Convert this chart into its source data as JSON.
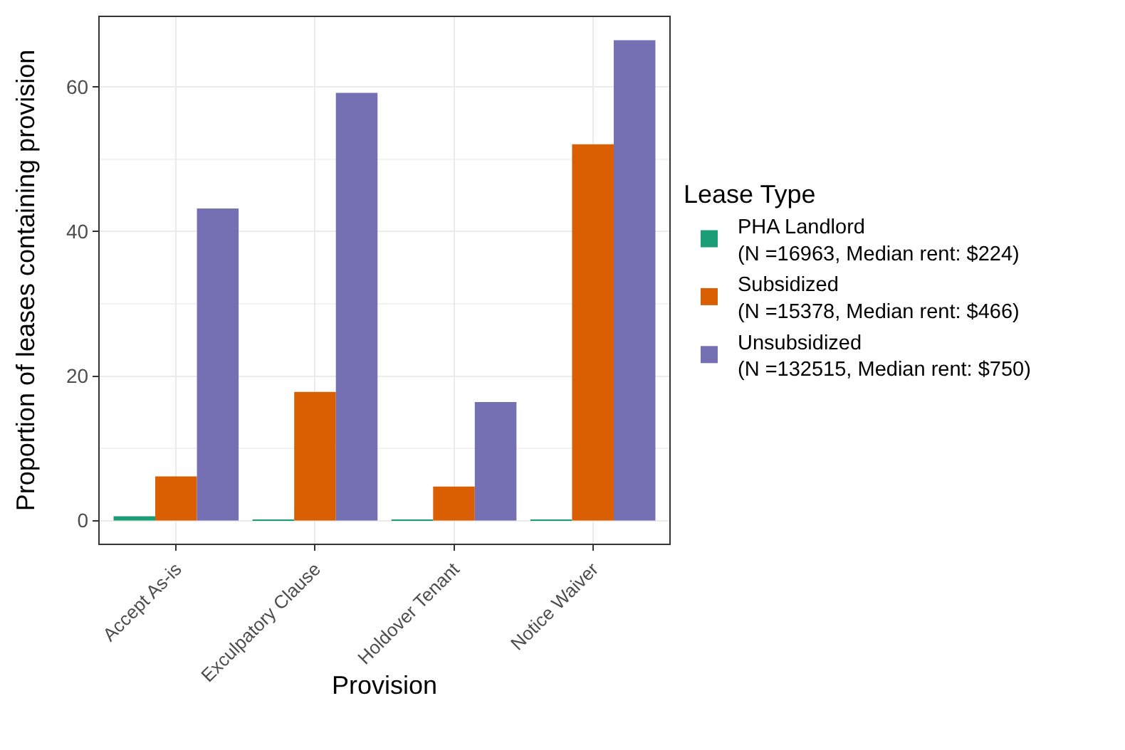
{
  "chart_data": {
    "type": "bar",
    "xlabel": "Provision",
    "ylabel": "Proportion of leases containing provision",
    "legend_title": "Lease Type",
    "categories": [
      "Accept As-is",
      "Exculpatory Clause",
      "Holdover Tenant",
      "Notice Waiver"
    ],
    "series": [
      {
        "name": "PHA Landlord\n(N =16963, Median rent: $224)",
        "color": "#1b9e77",
        "values": [
          0.6,
          0.1,
          0.1,
          0.1
        ]
      },
      {
        "name": "Subsidized\n(N =15378, Median rent: $466)",
        "color": "#d95f02",
        "values": [
          6.1,
          17.8,
          4.7,
          52.1
        ]
      },
      {
        "name": "Unsubsidized\n(N =132515, Median rent: $750)",
        "color": "#7570b3",
        "values": [
          43.2,
          59.2,
          16.4,
          66.5
        ]
      }
    ],
    "ylim": [
      -3.2,
      69.7
    ],
    "yticks": [
      0,
      20,
      40,
      60
    ],
    "grid": true,
    "legend": "right"
  }
}
